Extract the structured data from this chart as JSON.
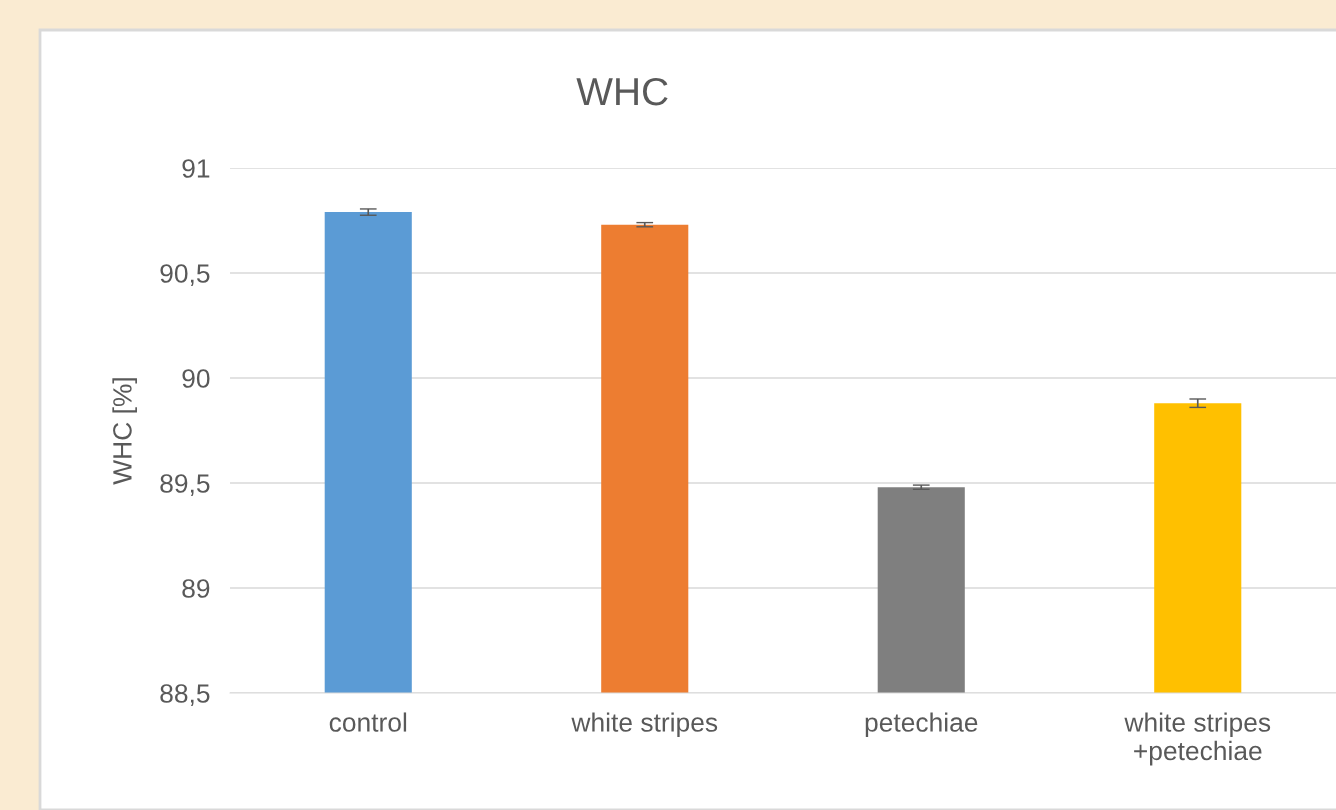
{
  "chart_data": {
    "type": "bar",
    "title": "WHC",
    "ylabel": "WHC [%]",
    "categories": [
      "control",
      "white stripes",
      "petechiae",
      "white stripes\n+petechiae"
    ],
    "values": [
      90.79,
      90.73,
      89.48,
      89.88
    ],
    "colors": [
      "#5b9bd5",
      "#ed7d31",
      "#7f7f7f",
      "#ffc000"
    ],
    "errors": [
      0.015,
      0.01,
      0.01,
      0.02
    ],
    "ylim": [
      88.5,
      91
    ],
    "yticks": [
      {
        "value": 88.5,
        "label": "88,5"
      },
      89,
      {
        "value": 89.5,
        "label": "89,5"
      },
      90,
      {
        "value": 90.5,
        "label": "90,5"
      },
      91
    ],
    "grid": "y"
  }
}
